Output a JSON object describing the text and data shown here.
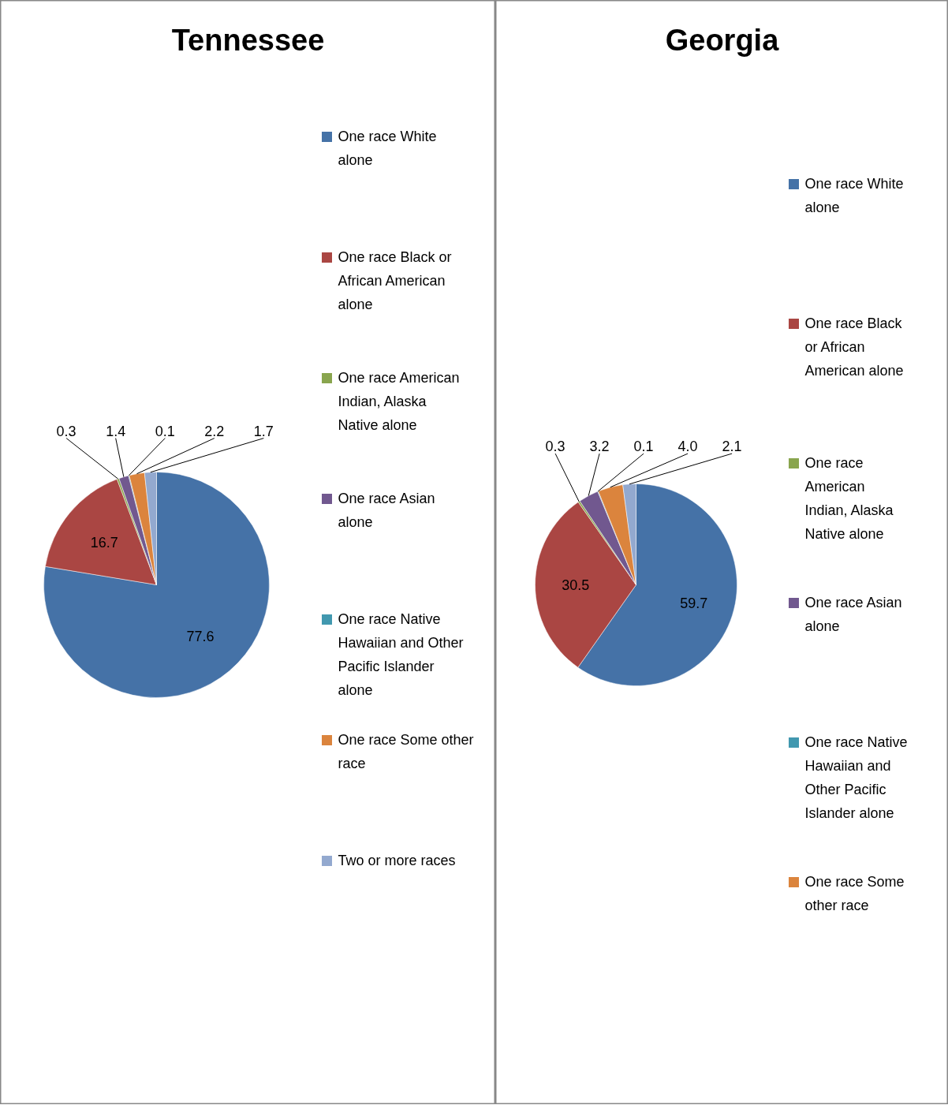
{
  "chart_data": [
    {
      "type": "pie",
      "title": "Tennessee",
      "categories": [
        "One race White alone",
        "One race Black or African American alone",
        "One race American Indian, Alaska Native alone",
        "One race Asian alone",
        "One race Native Hawaiian and Other Pacific Islander alone",
        "One race Some other race",
        "Two or more races"
      ],
      "values": [
        77.6,
        16.7,
        0.3,
        1.4,
        0.1,
        2.2,
        1.7
      ],
      "value_labels": [
        "77.6",
        "16.7",
        "0.3",
        "1.4",
        "0.1",
        "2.2",
        "1.7"
      ],
      "colors": [
        "#4572a7",
        "#aa4643",
        "#89a54e",
        "#71588f",
        "#4198af",
        "#db843d",
        "#93a9cf"
      ],
      "legend": "right"
    },
    {
      "type": "pie",
      "title": "Georgia",
      "categories": [
        "One race White alone",
        "One race Black or African American alone",
        "One race American Indian, Alaska Native alone",
        "One race Asian alone",
        "One race Native Hawaiian and Other Pacific Islander alone",
        "One race Some other race",
        null
      ],
      "values": [
        59.7,
        30.5,
        0.3,
        3.2,
        0.1,
        4.0,
        2.1
      ],
      "value_labels": [
        "59.7",
        "30.5",
        "0.3",
        "3.2",
        "0.1",
        "4.0",
        "2.1"
      ],
      "colors": [
        "#4572a7",
        "#aa4643",
        "#89a54e",
        "#71588f",
        "#4198af",
        "#db843d",
        "#93a9cf"
      ],
      "legend": "right"
    }
  ]
}
